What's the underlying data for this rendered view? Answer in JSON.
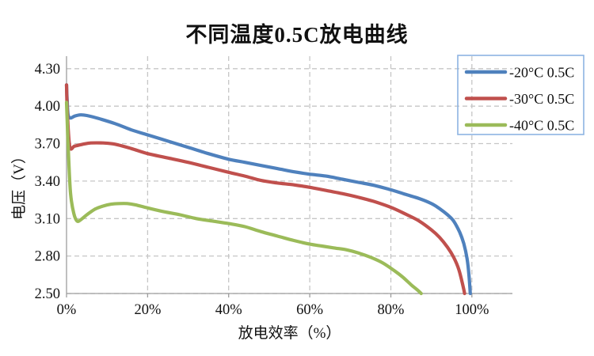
{
  "chart_data": {
    "type": "line",
    "title": "不同温度0.5C放电曲线",
    "xlabel": "放电效率（%）",
    "ylabel": "电压（V）",
    "x_tick_labels": [
      "0%",
      "20%",
      "40%",
      "60%",
      "80%",
      "100%"
    ],
    "x_tick_values": [
      0,
      20,
      40,
      60,
      80,
      100
    ],
    "y_tick_labels": [
      "4.30",
      "4.00",
      "3.70",
      "3.40",
      "3.10",
      "2.80",
      "2.50"
    ],
    "y_tick_values": [
      4.3,
      4.0,
      3.7,
      3.4,
      3.1,
      2.8,
      2.5
    ],
    "xlim": [
      0,
      110
    ],
    "ylim": [
      2.5,
      4.4
    ],
    "grid": "dashed-major-both",
    "legend_position": "top-right",
    "legend_border_color": "#8db4e2",
    "grid_color": "#c6c6c6",
    "axis_color": "#9d9d9d",
    "text_color": "#111111",
    "series": [
      {
        "name": "-20°C 0.5C",
        "color": "#4f81bd",
        "points": [
          [
            0,
            4.17
          ],
          [
            0.15,
            4.05
          ],
          [
            0.4,
            3.93
          ],
          [
            1,
            3.905
          ],
          [
            2,
            3.92
          ],
          [
            3.5,
            3.93
          ],
          [
            5,
            3.925
          ],
          [
            8,
            3.9
          ],
          [
            12,
            3.86
          ],
          [
            16,
            3.81
          ],
          [
            20,
            3.77
          ],
          [
            25,
            3.72
          ],
          [
            30,
            3.67
          ],
          [
            35,
            3.62
          ],
          [
            40,
            3.575
          ],
          [
            44,
            3.55
          ],
          [
            48,
            3.525
          ],
          [
            52,
            3.5
          ],
          [
            56,
            3.475
          ],
          [
            60,
            3.455
          ],
          [
            64,
            3.44
          ],
          [
            68,
            3.415
          ],
          [
            72,
            3.39
          ],
          [
            76,
            3.365
          ],
          [
            80,
            3.33
          ],
          [
            84,
            3.29
          ],
          [
            87,
            3.26
          ],
          [
            90,
            3.22
          ],
          [
            92,
            3.18
          ],
          [
            94,
            3.13
          ],
          [
            95.5,
            3.08
          ],
          [
            97,
            2.99
          ],
          [
            98,
            2.9
          ],
          [
            98.8,
            2.78
          ],
          [
            99.3,
            2.64
          ],
          [
            99.6,
            2.5
          ]
        ]
      },
      {
        "name": "-30°C 0.5C",
        "color": "#c0504d",
        "points": [
          [
            0,
            4.17
          ],
          [
            0.2,
            3.95
          ],
          [
            0.8,
            3.675
          ],
          [
            2,
            3.68
          ],
          [
            4,
            3.695
          ],
          [
            6,
            3.705
          ],
          [
            9,
            3.705
          ],
          [
            12,
            3.695
          ],
          [
            16,
            3.66
          ],
          [
            20,
            3.62
          ],
          [
            25,
            3.585
          ],
          [
            30,
            3.55
          ],
          [
            35,
            3.51
          ],
          [
            40,
            3.47
          ],
          [
            44,
            3.44
          ],
          [
            48,
            3.405
          ],
          [
            52,
            3.385
          ],
          [
            56,
            3.37
          ],
          [
            60,
            3.35
          ],
          [
            64,
            3.325
          ],
          [
            68,
            3.3
          ],
          [
            72,
            3.27
          ],
          [
            76,
            3.235
          ],
          [
            80,
            3.19
          ],
          [
            84,
            3.13
          ],
          [
            87,
            3.08
          ],
          [
            90,
            3.01
          ],
          [
            92,
            2.95
          ],
          [
            94,
            2.87
          ],
          [
            95.5,
            2.79
          ],
          [
            96.8,
            2.69
          ],
          [
            97.8,
            2.56
          ],
          [
            98.2,
            2.5
          ]
        ]
      },
      {
        "name": "-40°C 0.5C",
        "color": "#9bbb59",
        "points": [
          [
            0,
            4.03
          ],
          [
            0.5,
            3.6
          ],
          [
            1,
            3.3
          ],
          [
            1.8,
            3.14
          ],
          [
            2.6,
            3.08
          ],
          [
            3.5,
            3.09
          ],
          [
            5,
            3.13
          ],
          [
            7,
            3.175
          ],
          [
            9,
            3.2
          ],
          [
            11,
            3.215
          ],
          [
            13,
            3.22
          ],
          [
            15,
            3.22
          ],
          [
            17,
            3.21
          ],
          [
            20,
            3.185
          ],
          [
            24,
            3.155
          ],
          [
            28,
            3.13
          ],
          [
            32,
            3.1
          ],
          [
            36,
            3.08
          ],
          [
            40,
            3.06
          ],
          [
            44,
            3.035
          ],
          [
            48,
            2.995
          ],
          [
            52,
            2.96
          ],
          [
            56,
            2.925
          ],
          [
            60,
            2.895
          ],
          [
            63,
            2.88
          ],
          [
            66,
            2.865
          ],
          [
            69,
            2.85
          ],
          [
            72,
            2.825
          ],
          [
            75,
            2.79
          ],
          [
            78,
            2.745
          ],
          [
            81,
            2.68
          ],
          [
            83,
            2.63
          ],
          [
            85,
            2.57
          ],
          [
            86.5,
            2.53
          ],
          [
            87.5,
            2.5
          ]
        ]
      }
    ]
  }
}
